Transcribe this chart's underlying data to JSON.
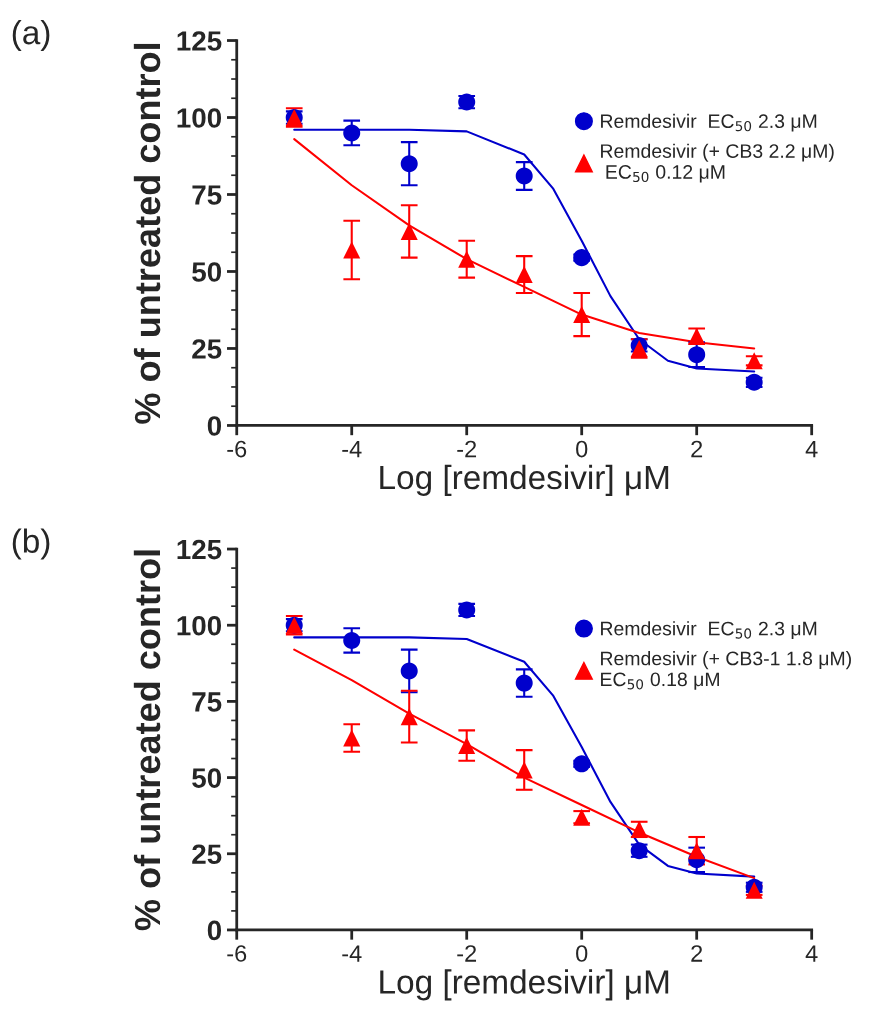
{
  "chart_data": [
    {
      "type": "scatter",
      "xlabel": "Log [remdesivir] μM",
      "ylabel": "% of untreated control",
      "annotations": [
        "(a)"
      ],
      "xlim": [
        -6,
        4
      ],
      "xticks": [
        -6,
        -4,
        -2,
        0,
        2,
        4
      ],
      "ylim": [
        0,
        125
      ],
      "yticks": [
        0,
        {
          "value": 6.25,
          "label": null
        },
        {
          "value": 12.5,
          "label": null
        },
        {
          "value": 18.75,
          "label": null
        },
        25,
        {
          "value": 31.25,
          "label": null
        },
        {
          "value": 37.5,
          "label": null
        },
        {
          "value": 43.75,
          "label": null
        },
        50,
        {
          "value": 56.25,
          "label": null
        },
        {
          "value": 62.5,
          "label": null
        },
        {
          "value": 68.75,
          "label": null
        },
        75,
        {
          "value": 81.25,
          "label": null
        },
        {
          "value": 87.5,
          "label": null
        },
        {
          "value": 93.75,
          "label": null
        },
        100,
        {
          "value": 106.25,
          "label": null
        },
        {
          "value": 112.5,
          "label": null
        },
        {
          "value": 118.75,
          "label": null
        },
        125
      ],
      "legend": "right",
      "grid": false,
      "series": [
        {
          "type": "line",
          "color": "#0000cc",
          "marker": "none",
          "x": [
            -5,
            -3,
            -2,
            -1,
            -0.5,
            0,
            0.5,
            1,
            1.5,
            2,
            3
          ],
          "values": [
            96,
            96,
            95.5,
            88,
            77,
            60,
            42,
            28,
            21,
            18.5,
            17.5
          ]
        },
        {
          "type": "line",
          "color": "#ff0000",
          "marker": "none",
          "x": [
            -5,
            -4,
            -3,
            -2,
            -1,
            0,
            1,
            2,
            3
          ],
          "values": [
            93,
            78,
            65,
            54,
            45,
            36,
            30,
            27,
            25
          ]
        },
        {
          "name": "Remdesivir  EC$_{50}$ 2.3 μM",
          "color": "#0000cc",
          "marker": "circle",
          "x": [
            -5,
            -4,
            -3,
            -2,
            -1,
            0,
            1,
            2,
            3
          ],
          "values": [
            100,
            95,
            85,
            105,
            81,
            54.5,
            26,
            23,
            14
          ],
          "errors": [
            2,
            4,
            7,
            2,
            4.5,
            1,
            2,
            4,
            1.5
          ]
        },
        {
          "name": "Remdesivir (+ CB3 2.2 μM)\n EC$_{50}$ 0.12 μM",
          "color": "#ff0000",
          "marker": "triangle",
          "x": [
            -5,
            -4,
            -3,
            -2,
            -1,
            0,
            1,
            2,
            3
          ],
          "values": [
            100,
            57,
            63,
            54,
            49,
            36,
            25,
            29,
            21
          ],
          "errors": [
            3,
            9.5,
            8.5,
            6,
            6,
            7,
            3,
            2.5,
            1.5
          ]
        }
      ]
    },
    {
      "type": "scatter",
      "xlabel": "Log [remdesivir] μM",
      "ylabel": "% of untreated control",
      "annotations": [
        "(b)"
      ],
      "xlim": [
        -6,
        4
      ],
      "xticks": [
        -6,
        -4,
        -2,
        0,
        2,
        4
      ],
      "ylim": [
        0,
        125
      ],
      "yticks": [
        0,
        {
          "value": 6.25,
          "label": null
        },
        {
          "value": 12.5,
          "label": null
        },
        {
          "value": 18.75,
          "label": null
        },
        25,
        {
          "value": 31.25,
          "label": null
        },
        {
          "value": 37.5,
          "label": null
        },
        {
          "value": 43.75,
          "label": null
        },
        50,
        {
          "value": 56.25,
          "label": null
        },
        {
          "value": 62.5,
          "label": null
        },
        {
          "value": 68.75,
          "label": null
        },
        75,
        {
          "value": 81.25,
          "label": null
        },
        {
          "value": 87.5,
          "label": null
        },
        {
          "value": 93.75,
          "label": null
        },
        100,
        {
          "value": 106.25,
          "label": null
        },
        {
          "value": 112.5,
          "label": null
        },
        {
          "value": 118.75,
          "label": null
        },
        125
      ],
      "legend": "right",
      "grid": false,
      "series": [
        {
          "type": "line",
          "color": "#0000cc",
          "marker": "none",
          "x": [
            -5,
            -3,
            -2,
            -1,
            -0.5,
            0,
            0.5,
            1,
            1.5,
            2,
            3
          ],
          "values": [
            96,
            96,
            95.5,
            88,
            77,
            60,
            42,
            28,
            21,
            18.5,
            17.5
          ]
        },
        {
          "type": "line",
          "color": "#ff0000",
          "marker": "none",
          "x": [
            -5,
            -4,
            -3,
            -2,
            -1,
            0,
            1,
            2,
            3
          ],
          "values": [
            92,
            82,
            71,
            61,
            50,
            41,
            32,
            24,
            17
          ]
        },
        {
          "name": "Remdesivir  EC$_{50}$ 2.3 μM",
          "color": "#0000cc",
          "marker": "circle",
          "x": [
            -5,
            -4,
            -3,
            -2,
            -1,
            0,
            1,
            2,
            3
          ],
          "values": [
            100,
            95,
            85,
            105,
            81,
            54.5,
            26,
            23,
            14
          ],
          "errors": [
            2,
            4,
            7,
            2,
            4.5,
            1,
            2,
            4,
            1.5
          ]
        },
        {
          "name": "Remdesivir (+ CB3-1 1.8 μM)\nEC$_{50}$ 0.18 μM",
          "color": "#ff0000",
          "marker": "triangle",
          "x": [
            -5,
            -4,
            -3,
            -2,
            -1,
            0,
            1,
            2,
            3
          ],
          "values": [
            100,
            63,
            70,
            60.5,
            52.5,
            37,
            33,
            26,
            13
          ],
          "errors": [
            3,
            4.5,
            8.5,
            5,
            6.5,
            2,
            2.5,
            4.5,
            1.5
          ]
        }
      ]
    }
  ]
}
